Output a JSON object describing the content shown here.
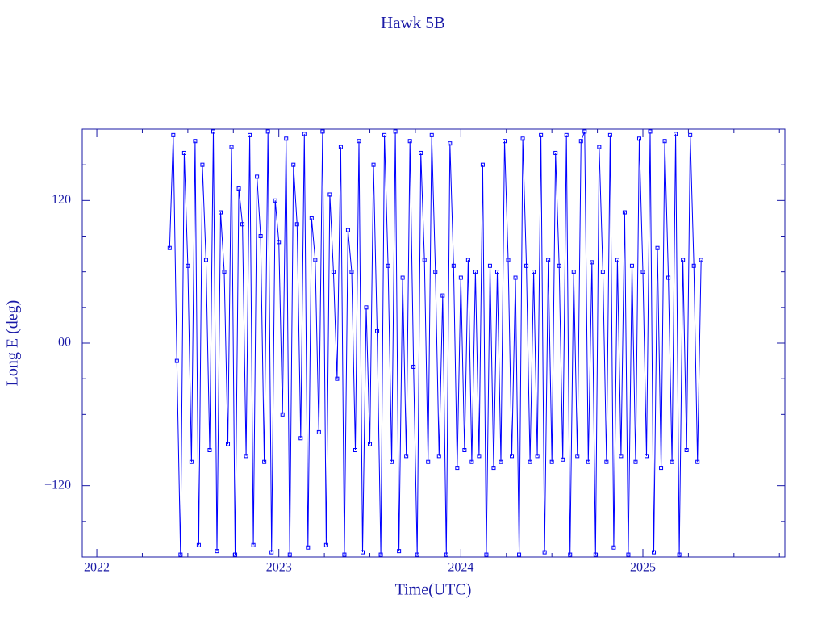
{
  "chart_data": {
    "type": "line",
    "title": "Hawk 5B",
    "x_label": "Time(UTC)",
    "y_label": "Long E (deg)",
    "color": "#0000ff",
    "xlim": [
      2021.92,
      2025.78
    ],
    "xticks": [
      2022,
      2023,
      2024,
      2025
    ],
    "xminorticks": [
      2022.25,
      2022.5,
      2022.75,
      2023.25,
      2023.5,
      2023.75,
      2024.25,
      2024.5,
      2024.75,
      2025.25,
      2025.5,
      2025.75
    ],
    "ylim": [
      -180,
      180
    ],
    "yticks": [
      120,
      {
        "value": 0,
        "label": "00"
      },
      {
        "value": -120,
        "label": "−120"
      }
    ],
    "yminorticks": [
      150,
      90,
      60,
      30,
      -30,
      -60,
      -90,
      -150
    ],
    "series": [
      {
        "name": "Hawk 5B",
        "color": "#0000ff",
        "x": [
          2022.4,
          2022.42,
          2022.44,
          2022.46,
          2022.48,
          2022.5,
          2022.52,
          2022.54,
          2022.56,
          2022.58,
          2022.6,
          2022.62,
          2022.64,
          2022.66,
          2022.68,
          2022.7,
          2022.72,
          2022.74,
          2022.76,
          2022.78,
          2022.8,
          2022.82,
          2022.84,
          2022.86,
          2022.88,
          2022.9,
          2022.92,
          2022.94,
          2022.96,
          2022.98,
          2023.0,
          2023.02,
          2023.04,
          2023.06,
          2023.08,
          2023.1,
          2023.12,
          2023.14,
          2023.16,
          2023.18,
          2023.2,
          2023.22,
          2023.24,
          2023.26,
          2023.28,
          2023.3,
          2023.32,
          2023.34,
          2023.36,
          2023.38,
          2023.4,
          2023.42,
          2023.44,
          2023.46,
          2023.48,
          2023.5,
          2023.52,
          2023.54,
          2023.56,
          2023.58,
          2023.6,
          2023.62,
          2023.64,
          2023.66,
          2023.68,
          2023.7,
          2023.72,
          2023.74,
          2023.76,
          2023.78,
          2023.8,
          2023.82,
          2023.84,
          2023.86,
          2023.88,
          2023.9,
          2023.92,
          2023.94,
          2023.96,
          2023.98,
          2024.0,
          2024.02,
          2024.04,
          2024.06,
          2024.08,
          2024.1,
          2024.12,
          2024.14,
          2024.16,
          2024.18,
          2024.2,
          2024.22,
          2024.24,
          2024.26,
          2024.28,
          2024.3,
          2024.32,
          2024.34,
          2024.36,
          2024.38,
          2024.4,
          2024.42,
          2024.44,
          2024.46,
          2024.48,
          2024.5,
          2024.52,
          2024.54,
          2024.56,
          2024.58,
          2024.6,
          2024.62,
          2024.64,
          2024.66,
          2024.68,
          2024.7,
          2024.72,
          2024.74,
          2024.76,
          2024.78,
          2024.8,
          2024.82,
          2024.84,
          2024.86,
          2024.88,
          2024.9,
          2024.92,
          2024.94,
          2024.96,
          2024.98,
          2025.0,
          2025.02,
          2025.04,
          2025.06,
          2025.08,
          2025.1,
          2025.12,
          2025.14,
          2025.16,
          2025.18,
          2025.2,
          2025.22,
          2025.24,
          2025.26,
          2025.28,
          2025.3,
          2025.32
        ],
        "values": [
          80,
          175,
          -15,
          -178,
          160,
          65,
          -100,
          170,
          -170,
          150,
          70,
          -90,
          178,
          -175,
          110,
          60,
          -85,
          165,
          -178,
          130,
          100,
          -95,
          175,
          -170,
          140,
          90,
          -100,
          178,
          -176,
          120,
          85,
          -60,
          172,
          -178,
          150,
          100,
          -80,
          176,
          -172,
          105,
          70,
          -75,
          178,
          -170,
          125,
          60,
          -30,
          165,
          -178,
          95,
          60,
          -90,
          170,
          -176,
          30,
          -85,
          150,
          10,
          -178,
          175,
          65,
          -100,
          178,
          -175,
          55,
          -95,
          170,
          -20,
          -178,
          160,
          70,
          -100,
          175,
          60,
          -95,
          40,
          -178,
          168,
          65,
          -105,
          55,
          -90,
          70,
          -100,
          60,
          -95,
          150,
          -178,
          65,
          -105,
          60,
          -100,
          170,
          70,
          -95,
          55,
          -178,
          172,
          65,
          -100,
          60,
          -95,
          175,
          -176,
          70,
          -100,
          160,
          65,
          -98,
          175,
          -178,
          60,
          -95,
          170,
          178,
          -100,
          68,
          -178,
          165,
          60,
          -100,
          175,
          -172,
          70,
          -95,
          110,
          -178,
          65,
          -100,
          172,
          60,
          -95,
          178,
          -176,
          80,
          -105,
          170,
          55,
          -100,
          176,
          -178,
          70,
          -90,
          175,
          65,
          -100,
          70
        ]
      }
    ]
  }
}
